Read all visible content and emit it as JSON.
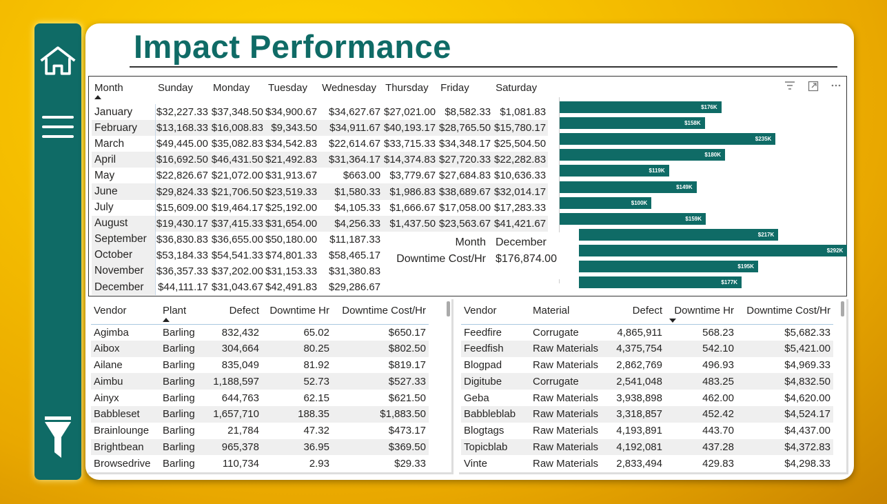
{
  "title": "Impact Performance",
  "sidebar": {
    "icons": [
      "home-icon",
      "menu-icon",
      "filter-icon"
    ]
  },
  "colors": {
    "accent": "#0f6b66",
    "background": "#f6c000"
  },
  "matrix": {
    "headers": [
      "Month",
      "Sunday",
      "Monday",
      "Tuesday",
      "Wednesday",
      "Thursday",
      "Friday",
      "Saturday"
    ],
    "rows": [
      [
        "January",
        "$32,227.33",
        "$37,348.50",
        "$34,900.67",
        "$34,627.67",
        "$27,021.00",
        "$8,582.33",
        "$1,081.83"
      ],
      [
        "February",
        "$13,168.33",
        "$16,008.83",
        "$9,343.50",
        "$34,911.67",
        "$40,193.17",
        "$28,765.50",
        "$15,780.17"
      ],
      [
        "March",
        "$49,445.00",
        "$35,082.83",
        "$34,542.83",
        "$22,614.67",
        "$33,715.33",
        "$34,348.17",
        "$25,504.50"
      ],
      [
        "April",
        "$16,692.50",
        "$46,431.50",
        "$21,492.83",
        "$31,364.17",
        "$14,374.83",
        "$27,720.33",
        "$22,282.83"
      ],
      [
        "May",
        "$22,826.67",
        "$21,072.00",
        "$31,913.67",
        "$663.00",
        "$3,779.67",
        "$27,684.83",
        "$10,636.33"
      ],
      [
        "June",
        "$29,824.33",
        "$21,706.50",
        "$23,519.33",
        "$1,580.33",
        "$1,986.83",
        "$38,689.67",
        "$32,014.17"
      ],
      [
        "July",
        "$15,609.00",
        "$19,464.17",
        "$25,192.00",
        "$4,105.33",
        "$1,666.67",
        "$17,058.00",
        "$17,283.33"
      ],
      [
        "August",
        "$19,430.17",
        "$37,415.33",
        "$31,654.00",
        "$4,256.33",
        "$1,437.50",
        "$23,563.67",
        "$41,421.67"
      ],
      [
        "September",
        "$36,830.83",
        "$36,655.00",
        "$50,180.00",
        "$11,187.33",
        "",
        "",
        ""
      ],
      [
        "October",
        "$53,184.33",
        "$54,541.33",
        "$74,801.33",
        "$58,465.17",
        "",
        "",
        ""
      ],
      [
        "November",
        "$36,357.33",
        "$37,202.00",
        "$31,153.33",
        "$31,380.83",
        "",
        "",
        ""
      ],
      [
        "December",
        "$44,111.17",
        "$31,043.67",
        "$42,491.83",
        "$29,286.67",
        "",
        "",
        ""
      ]
    ]
  },
  "tooltip": {
    "month_label": "Month",
    "month_value": "December",
    "cost_label": "Downtime Cost/Hr",
    "cost_value": "$176,874.00"
  },
  "chart_data": {
    "type": "bar",
    "categories": [
      "January",
      "February",
      "March",
      "April",
      "May",
      "June",
      "July",
      "August",
      "September",
      "October",
      "November",
      "December"
    ],
    "values": [
      176,
      158,
      235,
      180,
      119,
      149,
      100,
      159,
      217,
      292,
      195,
      177
    ],
    "labels": [
      "$176K",
      "$158K",
      "$235K",
      "$180K",
      "$119K",
      "$149K",
      "$100K",
      "$159K",
      "$217K",
      "$292K",
      "$195K",
      "$177K"
    ]
  },
  "plant_table": {
    "headers": [
      "Vendor",
      "Plant",
      "Defect",
      "Downtime Hr",
      "Downtime Cost/Hr"
    ],
    "rows": [
      [
        "Agimba",
        "Barling",
        "832,432",
        "65.02",
        "$650.17"
      ],
      [
        "Aibox",
        "Barling",
        "304,664",
        "80.25",
        "$802.50"
      ],
      [
        "Ailane",
        "Barling",
        "835,049",
        "81.92",
        "$819.17"
      ],
      [
        "Aimbu",
        "Barling",
        "1,188,597",
        "52.73",
        "$527.33"
      ],
      [
        "Ainyx",
        "Barling",
        "644,763",
        "62.15",
        "$621.50"
      ],
      [
        "Babbleset",
        "Barling",
        "1,657,710",
        "188.35",
        "$1,883.50"
      ],
      [
        "Brainlounge",
        "Barling",
        "21,784",
        "47.32",
        "$473.17"
      ],
      [
        "Brightbean",
        "Barling",
        "965,378",
        "36.95",
        "$369.50"
      ],
      [
        "Browsedrive",
        "Barling",
        "110,734",
        "2.93",
        "$29.33"
      ]
    ]
  },
  "material_table": {
    "headers": [
      "Vendor",
      "Material",
      "Defect",
      "Downtime Hr",
      "Downtime Cost/Hr"
    ],
    "rows": [
      [
        "Feedfire",
        "Corrugate",
        "4,865,911",
        "568.23",
        "$5,682.33"
      ],
      [
        "Feedfish",
        "Raw Materials",
        "4,375,754",
        "542.10",
        "$5,421.00"
      ],
      [
        "Blogpad",
        "Raw Materials",
        "2,862,769",
        "496.93",
        "$4,969.33"
      ],
      [
        "Digitube",
        "Corrugate",
        "2,541,048",
        "483.25",
        "$4,832.50"
      ],
      [
        "Geba",
        "Raw Materials",
        "3,938,898",
        "462.00",
        "$4,620.00"
      ],
      [
        "Babbleblab",
        "Raw Materials",
        "3,318,857",
        "452.42",
        "$4,524.17"
      ],
      [
        "Blogtags",
        "Raw Materials",
        "4,193,891",
        "443.70",
        "$4,437.00"
      ],
      [
        "Topicblab",
        "Raw Materials",
        "4,192,081",
        "437.28",
        "$4,372.83"
      ],
      [
        "Vinte",
        "Raw Materials",
        "2,833,494",
        "429.83",
        "$4,298.33"
      ]
    ]
  }
}
